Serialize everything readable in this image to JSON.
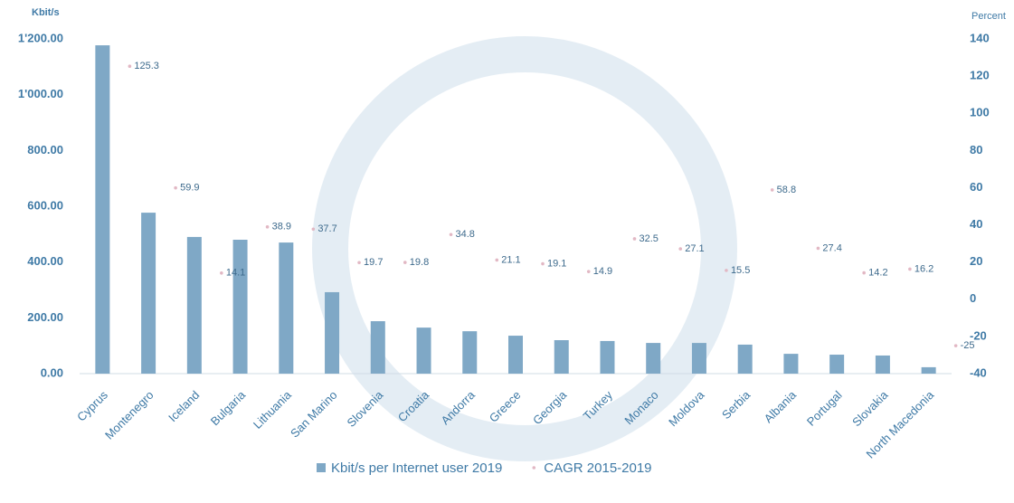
{
  "chart_data": {
    "type": "bar",
    "y_axis_label": "Kbit/s",
    "y2_axis_label": "Percent",
    "categories": [
      "Cyprus",
      "Montenegro",
      "Iceland",
      "Bulgaria",
      "Lithuania",
      "San Marino",
      "Slovenia",
      "Croatia",
      "Andorra",
      "Greece",
      "Georgia",
      "Turkey",
      "Monaco",
      "Moldova",
      "Serbia",
      "Albania",
      "Portugal",
      "Slovakia",
      "North Macedonia"
    ],
    "series": [
      {
        "name": "Kbit/s per Internet user 2019",
        "type": "bar",
        "color": "#7fa8c6",
        "values": [
          1177,
          577,
          490,
          480,
          470,
          292,
          188,
          165,
          152,
          136,
          120,
          117,
          110,
          110,
          104,
          71,
          68,
          65,
          23
        ]
      },
      {
        "name": "CAGR 2015-2019",
        "type": "scatter",
        "axis": "y2",
        "color": "#e2b8c4",
        "values": [
          125.3,
          59.9,
          14.1,
          38.9,
          37.7,
          19.7,
          19.8,
          34.8,
          21.1,
          19.1,
          14.9,
          32.5,
          27.1,
          15.5,
          58.8,
          27.4,
          14.2,
          16.2,
          -25
        ]
      }
    ],
    "ylim": [
      0,
      1200
    ],
    "yticks": [
      {
        "value": 0,
        "label": "0.00"
      },
      {
        "value": 200,
        "label": "200.00"
      },
      {
        "value": 400,
        "label": "400.00"
      },
      {
        "value": 600,
        "label": "600.00"
      },
      {
        "value": 800,
        "label": "800.00"
      },
      {
        "value": 1000,
        "label": "1'000.00"
      },
      {
        "value": 1200,
        "label": "1'200.00"
      }
    ],
    "y2lim": [
      -40,
      140
    ],
    "y2ticks": [
      -40,
      -20,
      0,
      20,
      40,
      60,
      80,
      100,
      120,
      140
    ],
    "legend": "bottom"
  }
}
